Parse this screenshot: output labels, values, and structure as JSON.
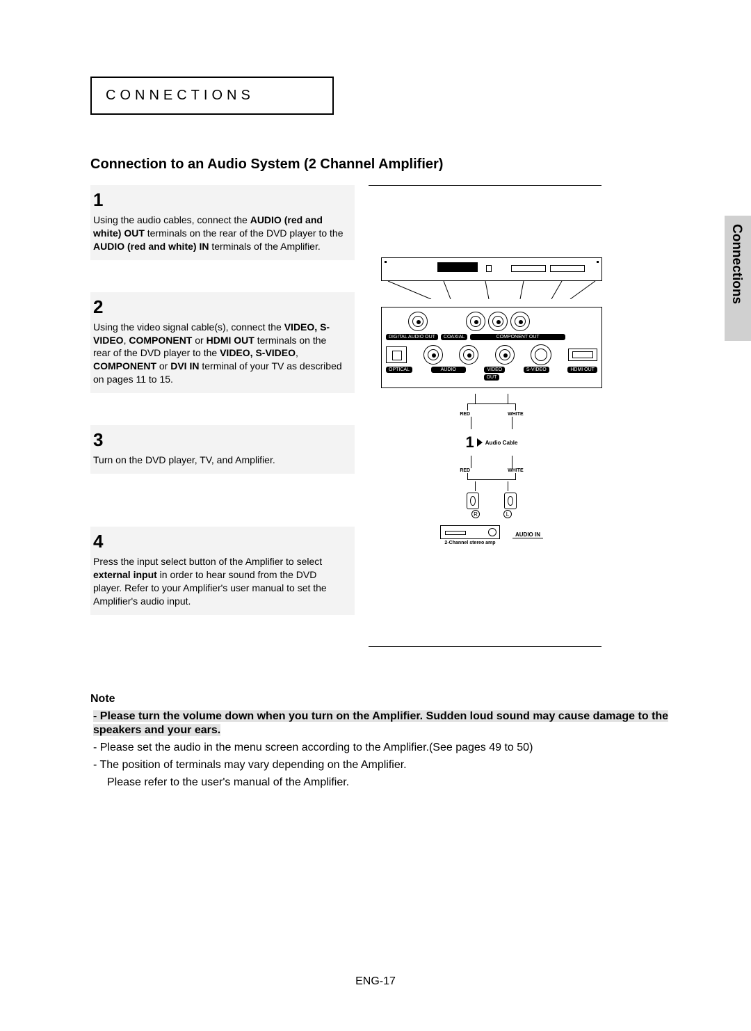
{
  "header": {
    "label": "CONNECTIONS"
  },
  "side_tab": "Connections",
  "title": "Connection to an Audio System (2 Channel Amplifier)",
  "steps": [
    {
      "num": "1",
      "parts": [
        {
          "t": "Using the audio cables, connect the "
        },
        {
          "t": "AUDIO (red and white) OUT",
          "b": true
        },
        {
          "t": " terminals on the rear of the DVD player to the "
        },
        {
          "t": "AUDIO (red and white) IN",
          "b": true
        },
        {
          "t": " terminals of the Amplifier."
        }
      ]
    },
    {
      "num": "2",
      "parts": [
        {
          "t": "Using the video signal cable(s), connect the "
        },
        {
          "t": "VIDEO, S-VIDEO",
          "b": true
        },
        {
          "t": ", "
        },
        {
          "t": "COMPONENT",
          "b": true
        },
        {
          "t": " or "
        },
        {
          "t": "HDMI OUT",
          "b": true
        },
        {
          "t": " terminals on the rear of the DVD player to the "
        },
        {
          "t": "VIDEO, S-VIDEO",
          "b": true
        },
        {
          "t": ", "
        },
        {
          "t": "COMPONENT",
          "b": true
        },
        {
          "t": " or "
        },
        {
          "t": "DVI IN",
          "b": true
        },
        {
          "t": " terminal of your TV as described on pages 11 to 15."
        }
      ]
    },
    {
      "num": "3",
      "parts": [
        {
          "t": "Turn on the DVD player, TV, and Amplifier."
        }
      ]
    },
    {
      "num": "4",
      "parts": [
        {
          "t": "Press the input select button of the Amplifier to select "
        },
        {
          "t": "external input",
          "b": true
        },
        {
          "t": "  in order to hear sound from the DVD player.\nRefer to your Amplifier's user manual to set the Amplifier's audio input."
        }
      ]
    }
  ],
  "diagram": {
    "top_labels": {
      "digital_audio_out": "DIGITAL AUDIO OUT",
      "coaxial": "COAXIAL",
      "component_out": "COMPONENT OUT",
      "hdmi_out": "HDMI OUT"
    },
    "bottom_labels": {
      "optical": "OPTICAL",
      "audio": "AUDIO",
      "video": "VIDEO",
      "svideo": "S-VIDEO",
      "out": "OUT"
    },
    "cable": {
      "red": "RED",
      "white": "WHITE",
      "one": "1",
      "audio_cable": "Audio Cable",
      "r": "R",
      "l": "L",
      "audio_in": "AUDIO IN",
      "amp": "2-Channel stereo amp"
    }
  },
  "notes": {
    "head": "Note",
    "items": [
      {
        "hl": true,
        "prefix": "-  ",
        "text": "Please turn the volume down when you turn on the Amplifier. Sudden loud sound may cause damage to the speakers and your ears."
      },
      {
        "prefix": "-  ",
        "text": "Please set the audio in the menu screen according to the Amplifier.(See pages 49 to 50)"
      },
      {
        "prefix": "-  ",
        "text": "The position of terminals may vary depending on the Amplifier.",
        "text2": "Please refer to the user's manual of the Amplifier."
      }
    ]
  },
  "page_num": "ENG-17"
}
